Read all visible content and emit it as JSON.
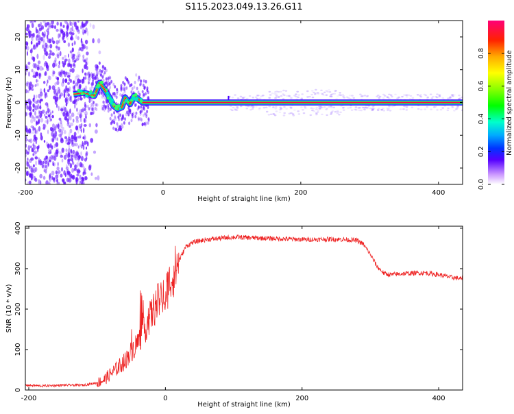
{
  "title": "S115.2023.049.13.26.G11",
  "charts": [
    {
      "chart_data": {
        "type": "heatmap",
        "title": "S115.2023.049.13.26.G11",
        "xlabel": "Height of straight line (km)",
        "ylabel": "Frequency (Hz)",
        "xlim": [
          -200,
          435
        ],
        "ylim": [
          -25,
          25
        ],
        "xticks": [
          -200,
          0,
          200,
          400
        ],
        "yticks": [
          -20,
          -10,
          0,
          10,
          20
        ],
        "colorbar": {
          "label": "Normalized spectral amplitude",
          "range": [
            0,
            1
          ],
          "ticks": [
            0.0,
            0.2,
            0.4,
            0.6,
            0.8
          ]
        },
        "dominant_frequency_ridge": {
          "x": [
            -130,
            -115,
            -100,
            -92,
            -85,
            -78,
            -72,
            -66,
            -60,
            -55,
            -48,
            -42,
            -36,
            -30,
            0,
            100,
            200,
            300,
            435
          ],
          "y": [
            2.5,
            3,
            2,
            6,
            4,
            1.5,
            -1,
            -2,
            -1.5,
            1.5,
            -0.5,
            2,
            1,
            0,
            0,
            0,
            0,
            0,
            0
          ]
        },
        "colors": {
          "ridge": "#ff0044",
          "band": "#00cc44",
          "noise": "#6a1bff"
        }
      }
    },
    {
      "chart_data": {
        "type": "line",
        "xlabel": "Height of straight line (km)",
        "ylabel": "SNR (10 * v/v)",
        "xlim": [
          -205,
          435
        ],
        "ylim": [
          0,
          405
        ],
        "xticks": [
          -200,
          0,
          200,
          400
        ],
        "yticks": [
          0,
          100,
          200,
          300,
          400
        ],
        "series": [
          {
            "color": "#ee2222",
            "x": [
              -205,
              -180,
              -150,
              -120,
              -100,
              -90,
              -80,
              -70,
              -60,
              -50,
              -40,
              -30,
              -20,
              -10,
              0,
              10,
              20,
              30,
              40,
              60,
              100,
              150,
              200,
              250,
              280,
              290,
              300,
              310,
              320,
              330,
              350,
              380,
              400,
              420,
              435
            ],
            "y": [
              12,
              10,
              12,
              12,
              18,
              25,
              40,
              55,
              70,
              95,
              120,
              150,
              190,
              220,
              240,
              280,
              320,
              355,
              365,
              372,
              378,
              375,
              372,
              373,
              370,
              360,
              335,
              305,
              288,
              285,
              288,
              290,
              285,
              278,
              275
            ]
          }
        ]
      }
    }
  ]
}
